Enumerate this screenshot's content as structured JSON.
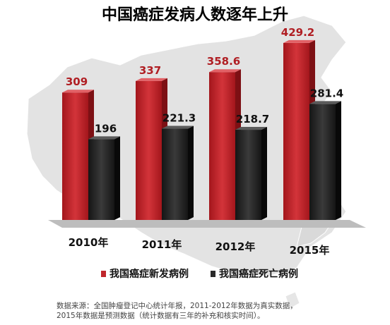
{
  "chart_data": {
    "type": "bar",
    "title": "中国癌症发病人数逐年上升",
    "categories": [
      "2010年",
      "2011年",
      "2012年",
      "2015年"
    ],
    "series": [
      {
        "name": "我国癌症新发病例",
        "values": [
          309,
          337,
          358.6,
          429.2
        ],
        "labels": [
          "309",
          "337",
          "358.6",
          "429.2"
        ],
        "color": "#c0262c"
      },
      {
        "name": "我国癌症死亡病例",
        "values": [
          196,
          221.3,
          218.7,
          281.4
        ],
        "labels": [
          "196",
          "221.3",
          "218.7",
          "281.4"
        ],
        "color": "#2a2a2a"
      }
    ],
    "ylim": [
      0,
      450
    ],
    "grid": false,
    "legend_position": "bottom",
    "source_note": [
      "数据来源：全国肿瘤登记中心统计年报，2011-2012年数据为真实数据，",
      "2015年数据是预测数据（统计数据有三年的补充和核实时间）。"
    ]
  }
}
